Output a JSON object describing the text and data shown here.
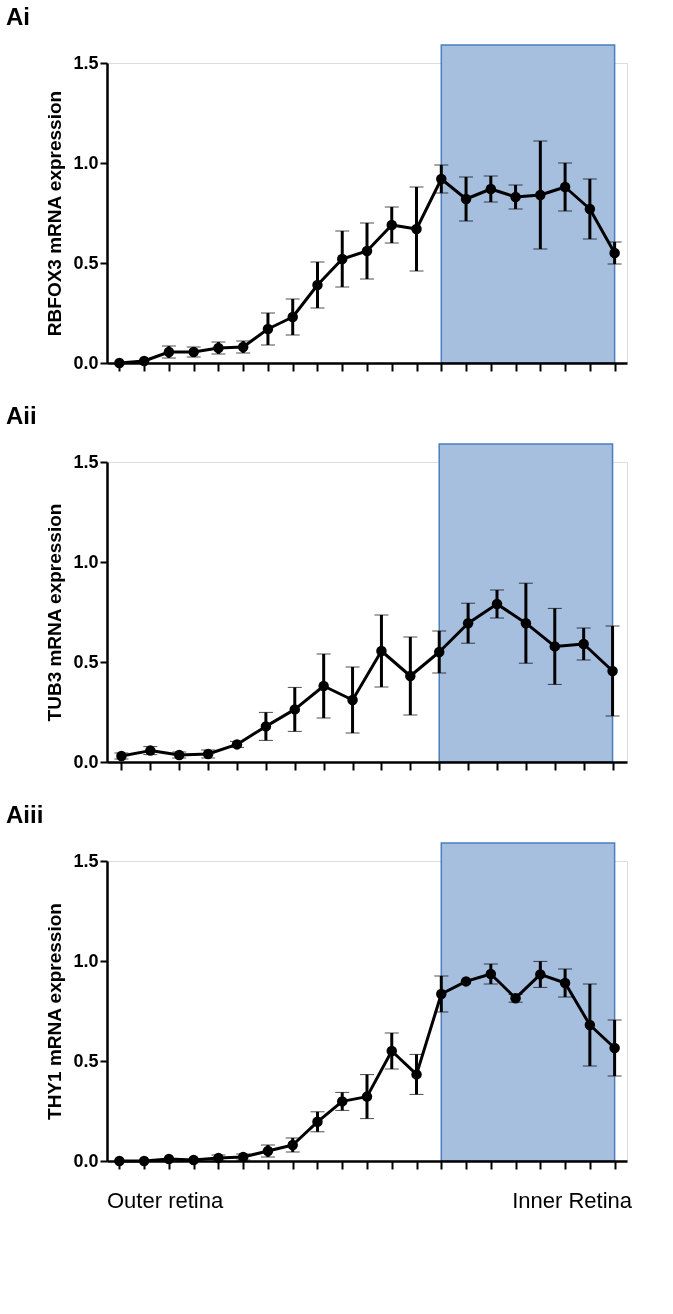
{
  "chart_data": [
    {
      "type": "line",
      "title": "Ai",
      "ylabel": "RBFOX3 mRNA expression",
      "categories": [
        null,
        null,
        null,
        null,
        null,
        null,
        null,
        null,
        null,
        null,
        null,
        null,
        null,
        null,
        null,
        null,
        null,
        null,
        null,
        null,
        null
      ],
      "series": [
        {
          "color": "#000000",
          "values": [
            0.0,
            0.01,
            0.055,
            0.055,
            0.075,
            0.08,
            0.17,
            0.23,
            0.39,
            0.52,
            0.56,
            0.69,
            0.67,
            0.92,
            0.82,
            0.87,
            0.83,
            0.84,
            0.88,
            0.77,
            0.55
          ],
          "errors": [
            null,
            null,
            0.03,
            0.025,
            0.03,
            0.03,
            0.08,
            0.09,
            0.115,
            0.14,
            0.14,
            0.09,
            0.21,
            0.07,
            0.11,
            0.065,
            0.06,
            0.27,
            0.12,
            0.15,
            0.055
          ]
        }
      ],
      "ylim": [
        0,
        1.5
      ],
      "yticks": [
        {
          "value": 0,
          "label": "0.0"
        },
        {
          "value": 0.5,
          "label": "0.5"
        },
        {
          "value": 1,
          "label": "1.0"
        },
        {
          "value": 1.5,
          "label": "1.5"
        }
      ],
      "grid": false,
      "marker": "circle",
      "line_style": "solid"
    },
    {
      "type": "line",
      "title": "Aii",
      "ylabel": "TUB3 mRNA expression",
      "categories": [
        null,
        null,
        null,
        null,
        null,
        null,
        null,
        null,
        null,
        null,
        null,
        null,
        null,
        null,
        null,
        null,
        null,
        null
      ],
      "series": [
        {
          "color": "#000000",
          "values": [
            0.03,
            0.057,
            0.035,
            0.04,
            0.088,
            0.178,
            0.263,
            0.38,
            0.31,
            0.555,
            0.43,
            0.55,
            0.694,
            0.79,
            0.694,
            0.578,
            0.59,
            0.455
          ],
          "errors": [
            0.015,
            0.02,
            0.015,
            0.02,
            0.015,
            0.07,
            0.11,
            0.16,
            0.165,
            0.18,
            0.195,
            0.105,
            0.1,
            0.07,
            0.2,
            0.19,
            0.08,
            0.225
          ]
        }
      ],
      "ylim": [
        0,
        1.5
      ],
      "yticks": [
        {
          "value": 0,
          "label": "0.0"
        },
        {
          "value": 0.5,
          "label": "0.5"
        },
        {
          "value": 1,
          "label": "1.0"
        },
        {
          "value": 1.5,
          "label": "1.5"
        }
      ],
      "grid": false,
      "marker": "circle",
      "line_style": "solid"
    },
    {
      "type": "line",
      "title": "Aiii",
      "ylabel": "THY1 mRNA expression",
      "categories": [
        null,
        null,
        null,
        null,
        null,
        null,
        null,
        null,
        null,
        null,
        null,
        null,
        null,
        null,
        null,
        null,
        null,
        null,
        null,
        null,
        null
      ],
      "series": [
        {
          "color": "#000000",
          "values": [
            0.0,
            0.0,
            0.01,
            0.005,
            0.015,
            0.02,
            0.05,
            0.08,
            0.196,
            0.298,
            0.322,
            0.55,
            0.433,
            0.835,
            0.898,
            0.935,
            0.814,
            0.933,
            0.89,
            0.68,
            0.565
          ],
          "errors": [
            null,
            null,
            null,
            null,
            0.015,
            0.015,
            0.03,
            0.035,
            0.05,
            0.045,
            0.11,
            0.09,
            0.1,
            0.09,
            null,
            0.05,
            0.02,
            0.065,
            0.07,
            0.205,
            0.14
          ]
        }
      ],
      "ylim": [
        0,
        1.5
      ],
      "yticks": [
        {
          "value": 0,
          "label": "0.0"
        },
        {
          "value": 0.5,
          "label": "0.5"
        },
        {
          "value": 1,
          "label": "1.0"
        },
        {
          "value": 1.5,
          "label": "1.5"
        }
      ],
      "grid": false,
      "marker": "circle",
      "line_style": "solid",
      "annotations": [
        "Outer retina",
        "Inner Retina"
      ]
    }
  ]
}
